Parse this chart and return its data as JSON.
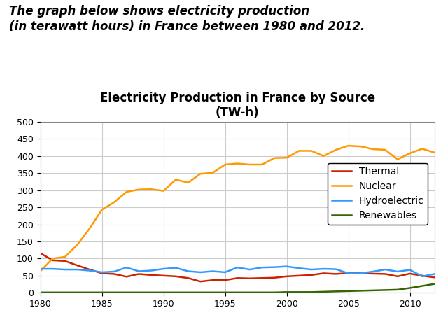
{
  "title_line1": "Electricity Production in France by Source",
  "title_line2": "(TW-h)",
  "header_text": "The graph below shows electricity production\n(in terawatt hours) in France between 1980 and 2012.",
  "years": [
    1980,
    1981,
    1982,
    1983,
    1984,
    1985,
    1986,
    1987,
    1988,
    1989,
    1990,
    1991,
    1992,
    1993,
    1994,
    1995,
    1996,
    1997,
    1998,
    1999,
    2000,
    2001,
    2002,
    2003,
    2004,
    2005,
    2006,
    2007,
    2008,
    2009,
    2010,
    2011,
    2012
  ],
  "thermal": [
    116,
    95,
    93,
    80,
    68,
    57,
    55,
    47,
    55,
    52,
    50,
    48,
    43,
    33,
    37,
    37,
    43,
    42,
    43,
    44,
    48,
    50,
    52,
    57,
    55,
    58,
    57,
    56,
    55,
    48,
    56,
    50,
    45
  ],
  "nuclear": [
    63,
    100,
    105,
    140,
    188,
    243,
    265,
    295,
    302,
    303,
    298,
    331,
    322,
    348,
    351,
    375,
    378,
    375,
    375,
    394,
    395,
    415,
    415,
    400,
    418,
    430,
    428,
    420,
    418,
    390,
    408,
    421,
    410
  ],
  "hydro": [
    70,
    70,
    68,
    68,
    65,
    60,
    62,
    74,
    63,
    65,
    70,
    73,
    63,
    60,
    63,
    60,
    74,
    68,
    74,
    75,
    77,
    72,
    68,
    70,
    69,
    57,
    57,
    62,
    68,
    62,
    67,
    48,
    55
  ],
  "renewables": [
    1,
    1,
    1,
    1,
    1,
    1,
    1,
    1,
    1,
    1,
    1,
    1,
    1,
    1,
    1,
    1,
    1,
    1,
    1,
    1,
    2,
    2,
    2,
    3,
    4,
    5,
    6,
    7,
    8,
    9,
    14,
    20,
    26
  ],
  "thermal_color": "#cc2200",
  "nuclear_color": "#ff9900",
  "hydro_color": "#3399ff",
  "renewables_color": "#336600",
  "ylim": [
    0,
    500
  ],
  "yticks": [
    0,
    50,
    100,
    150,
    200,
    250,
    300,
    350,
    400,
    450,
    500
  ],
  "xlim": [
    1980,
    2012
  ],
  "xticks": [
    1980,
    1985,
    1990,
    1995,
    2000,
    2005,
    2010
  ],
  "grid_color": "#cccccc",
  "bg_color": "#ffffff",
  "header_fontsize": 12,
  "title_fontsize": 12,
  "tick_fontsize": 9,
  "legend_fontsize": 10
}
